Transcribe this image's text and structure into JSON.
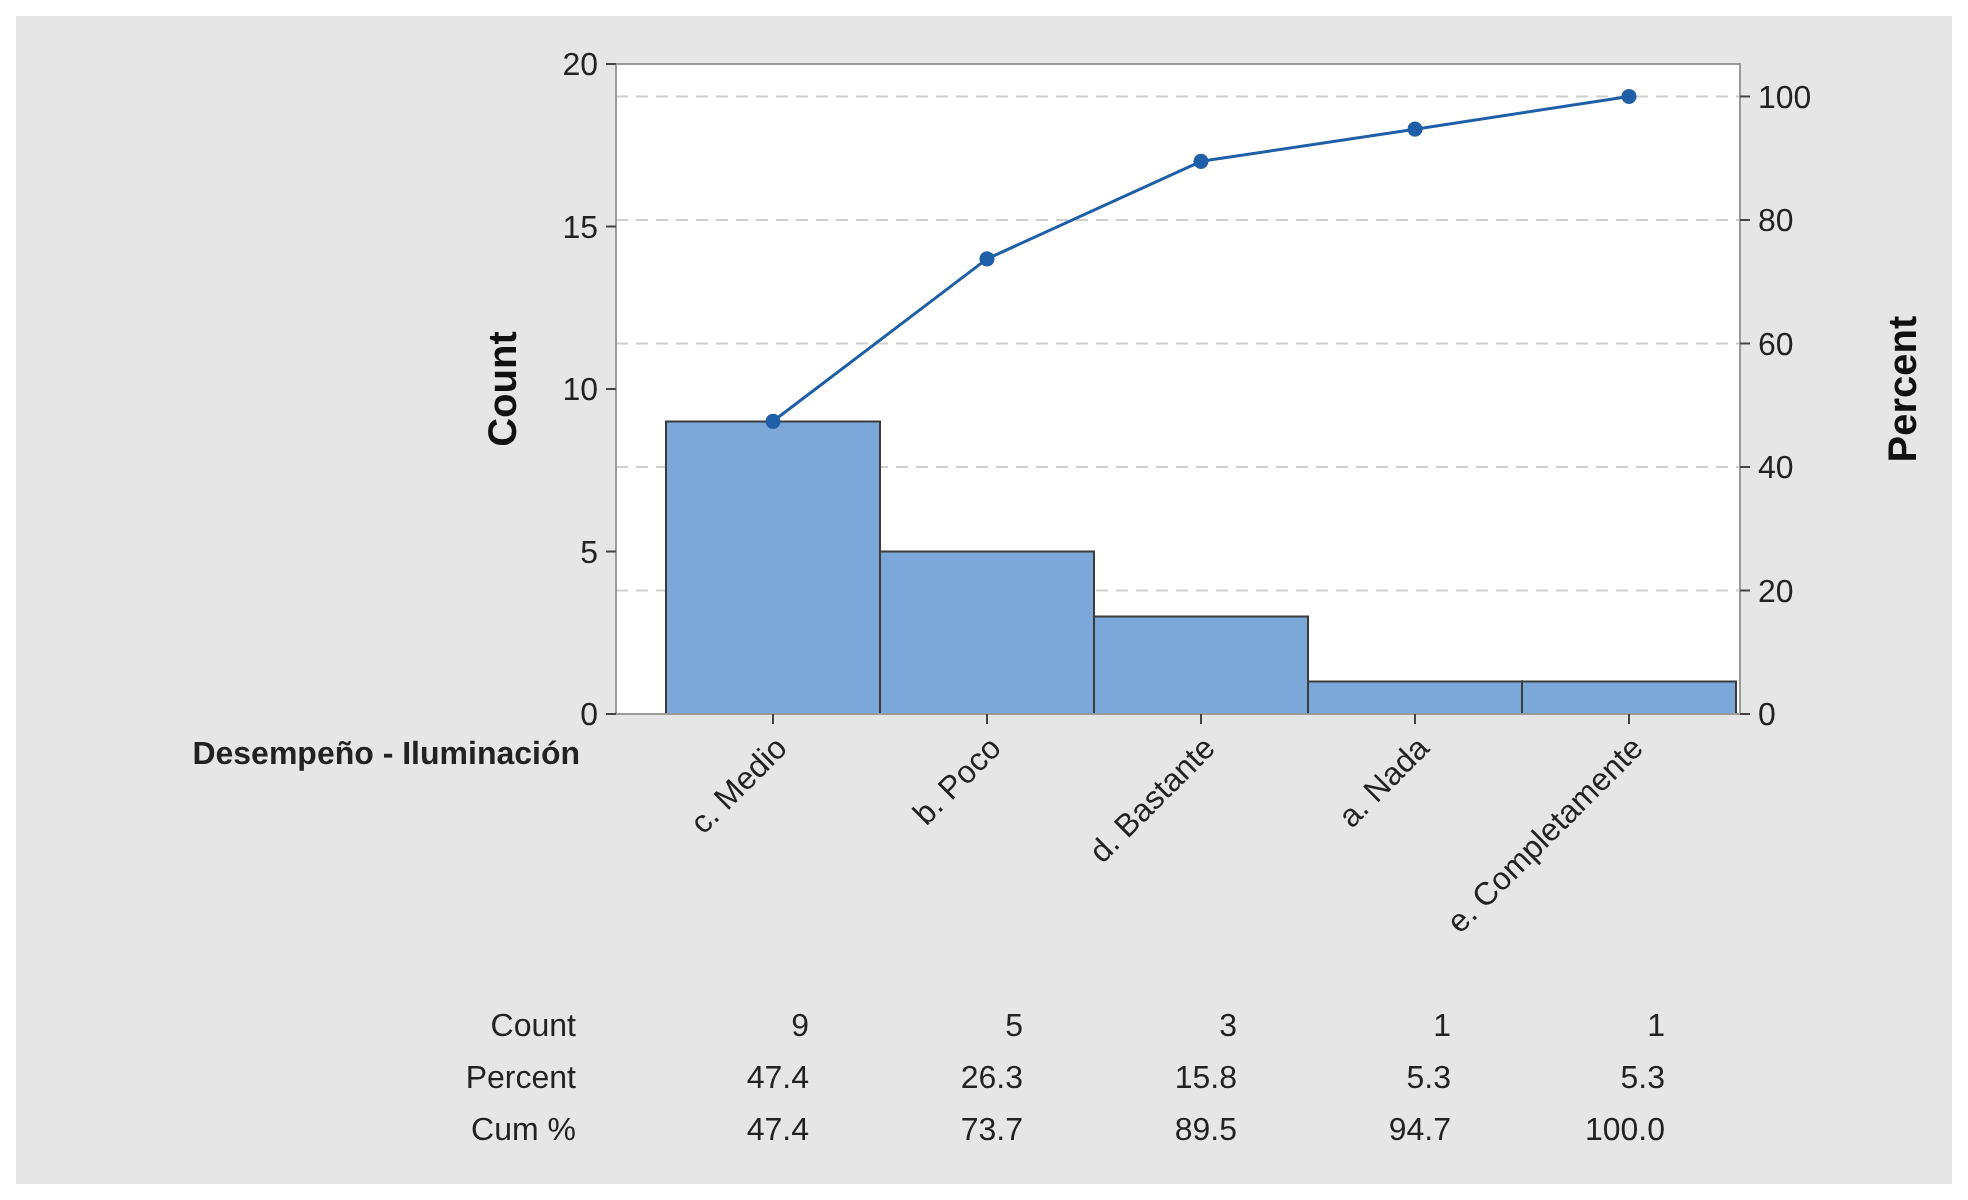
{
  "chart_data": {
    "type": "bar",
    "xlabel": "Desempeño - Iluminación",
    "ylabel": "Count",
    "y2label": "Percent",
    "categories": [
      "c. Medio",
      "b. Poco",
      "d. Bastante",
      "a. Nada",
      "e. Completamente"
    ],
    "series": [
      {
        "color": "#7ba7d9",
        "values": [
          9,
          5,
          3,
          1,
          1
        ],
        "value_labels": [
          "9",
          "5",
          "3",
          "1",
          "1"
        ]
      },
      {
        "type": "line",
        "axis": "y2",
        "color": "#1f5fa8",
        "values": [
          47.4,
          73.7,
          89.5,
          94.7,
          100.0
        ],
        "value_labels": [
          "47.4",
          "73.7",
          "89.5",
          "94.7",
          "100.0"
        ]
      }
    ],
    "annotations": [
      "Count",
      "Percent",
      "Cum %",
      "47.4",
      "26.3",
      "15.8",
      "5.3",
      "5.3"
    ],
    "ylim": [
      0,
      20
    ],
    "yticks": [
      0,
      5,
      10,
      15,
      20
    ],
    "y2lim": [
      0,
      105.26
    ],
    "y2ticks": [
      0,
      20,
      40,
      60,
      80,
      100
    ],
    "grid": "y2",
    "marker": "circle"
  }
}
